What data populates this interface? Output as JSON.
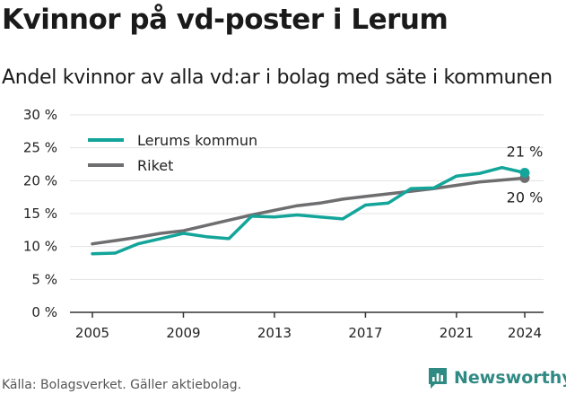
{
  "title": "Kvinnor på vd-poster i Lerum",
  "subtitle": "Andel kvinnor av alla vd:ar i bolag med säte i kommunen",
  "source": "Källa: Bolagsverket. Gäller aktiebolag.",
  "brand": {
    "name": "Newsworthy",
    "icon": "bar-chart-logo-icon",
    "color": "#2f8a83"
  },
  "chart_data": {
    "type": "line",
    "x": [
      2005,
      2006,
      2007,
      2008,
      2009,
      2010,
      2011,
      2012,
      2013,
      2014,
      2015,
      2016,
      2017,
      2018,
      2019,
      2020,
      2021,
      2022,
      2023,
      2024
    ],
    "xticks": [
      2005,
      2009,
      2013,
      2017,
      2021,
      2024
    ],
    "xtick_labels": [
      "2005",
      "2009",
      "2013",
      "2017",
      "2021",
      "2024"
    ],
    "ylim": [
      0,
      30
    ],
    "yticks": [
      0,
      5,
      10,
      15,
      20,
      25,
      30
    ],
    "ytick_labels": [
      "0 %",
      "5 %",
      "10 %",
      "15 %",
      "20 %",
      "25 %",
      "30 %"
    ],
    "grid": "horizontal",
    "legend_position": "top-left",
    "series": [
      {
        "name": "Lerums kommun",
        "color": "#13a59a",
        "values": [
          8.9,
          9.0,
          10.4,
          11.2,
          12.0,
          11.5,
          11.2,
          14.6,
          14.5,
          14.8,
          14.5,
          14.2,
          16.3,
          16.6,
          18.8,
          18.9,
          20.7,
          21.1,
          22.0,
          21.2
        ],
        "end_label": "21 %"
      },
      {
        "name": "Riket",
        "color": "#6e6e70",
        "values": [
          10.4,
          10.9,
          11.4,
          12.0,
          12.4,
          13.2,
          14.0,
          14.8,
          15.5,
          16.2,
          16.6,
          17.2,
          17.6,
          18.0,
          18.4,
          18.8,
          19.3,
          19.8,
          20.1,
          20.4
        ],
        "end_label": "20 %"
      }
    ]
  }
}
